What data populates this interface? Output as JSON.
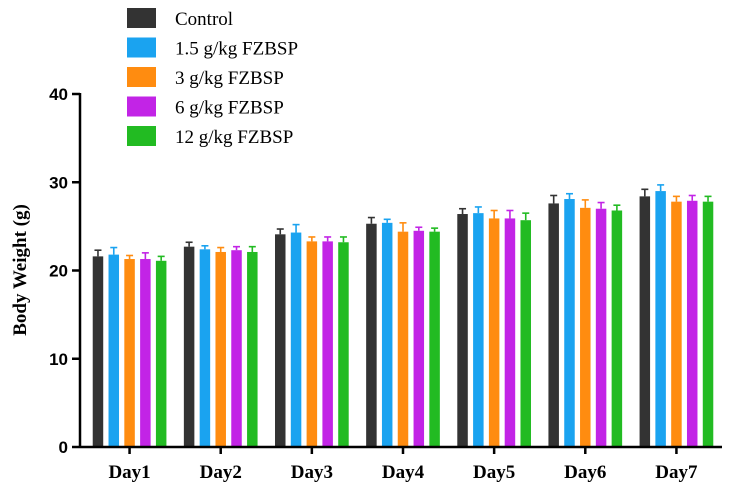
{
  "chart_data": {
    "type": "bar",
    "title": "",
    "xlabel": "",
    "ylabel": "Body Weight (g)",
    "ylim": [
      0,
      40
    ],
    "yticks": [
      0,
      10,
      20,
      30,
      40
    ],
    "categories": [
      "Day1",
      "Day2",
      "Day3",
      "Day4",
      "Day5",
      "Day6",
      "Day7"
    ],
    "legend_position": "top-left",
    "series": [
      {
        "name": "Control",
        "color": "#333333",
        "values": [
          21.6,
          22.7,
          24.1,
          25.3,
          26.4,
          27.6,
          28.4
        ],
        "errors": [
          0.7,
          0.5,
          0.6,
          0.7,
          0.6,
          0.9,
          0.8
        ]
      },
      {
        "name": "1.5 g/kg FZBSP",
        "color": "#1aa3f0",
        "values": [
          21.8,
          22.4,
          24.3,
          25.4,
          26.5,
          28.1,
          29.0
        ],
        "errors": [
          0.8,
          0.4,
          0.9,
          0.4,
          0.7,
          0.6,
          0.7
        ]
      },
      {
        "name": "3 g/kg FZBSP",
        "color": "#ff8c10",
        "values": [
          21.3,
          22.1,
          23.3,
          24.4,
          25.9,
          27.1,
          27.8
        ],
        "errors": [
          0.4,
          0.5,
          0.5,
          1.0,
          0.9,
          0.9,
          0.6
        ]
      },
      {
        "name": "6 g/kg FZBSP",
        "color": "#c224e6",
        "values": [
          21.3,
          22.3,
          23.3,
          24.5,
          25.9,
          27.0,
          27.9
        ],
        "errors": [
          0.7,
          0.4,
          0.5,
          0.4,
          0.9,
          0.7,
          0.6
        ]
      },
      {
        "name": "12 g/kg FZBSP",
        "color": "#22bb22",
        "values": [
          21.1,
          22.1,
          23.2,
          24.4,
          25.7,
          26.8,
          27.8
        ],
        "errors": [
          0.5,
          0.6,
          0.6,
          0.4,
          0.8,
          0.6,
          0.6
        ]
      }
    ]
  }
}
